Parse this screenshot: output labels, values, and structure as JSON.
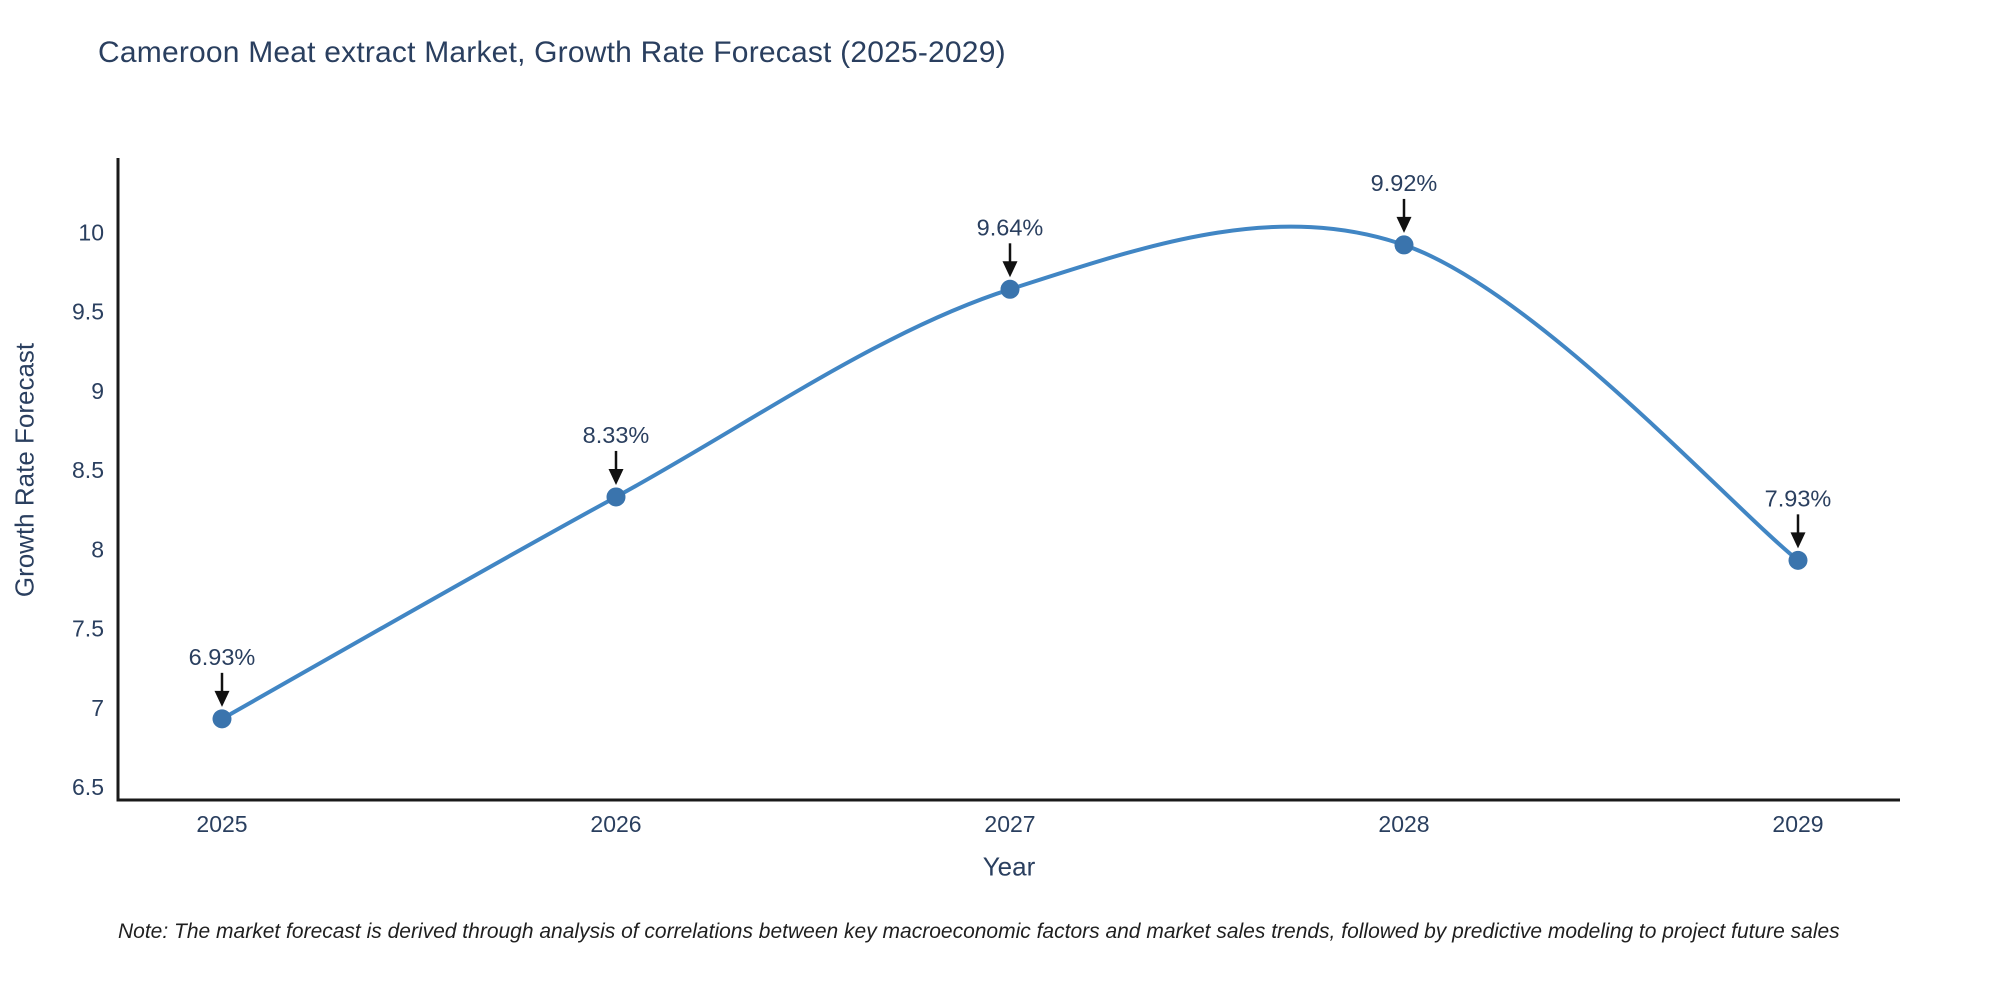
{
  "page": {
    "note": "Note: The market forecast is derived through analysis of correlations between key macroeconomic factors and market sales trends, followed by predictive modeling to project future sales"
  },
  "chart_data": {
    "type": "line",
    "title": "Cameroon Meat extract Market, Growth Rate Forecast (2025-2029)",
    "xlabel": "Year",
    "ylabel": "Growth Rate Forecast",
    "x": [
      2025,
      2026,
      2027,
      2028,
      2029
    ],
    "values": [
      6.93,
      8.33,
      9.64,
      9.92,
      7.93
    ],
    "point_labels": [
      "6.93%",
      "8.33%",
      "9.64%",
      "9.92%",
      "7.93%"
    ],
    "yticks": [
      6.5,
      7,
      7.5,
      8,
      8.5,
      9,
      9.5,
      10
    ],
    "ylim": [
      6.42,
      10.47
    ],
    "smooth": true,
    "grid": false,
    "legend_position": "none",
    "colors": {
      "line": "#4186c4",
      "marker": "#3a74ad",
      "axis": "#1a1a1a",
      "text": "#2a3f5f",
      "annotation_arrow": "#111111"
    }
  }
}
